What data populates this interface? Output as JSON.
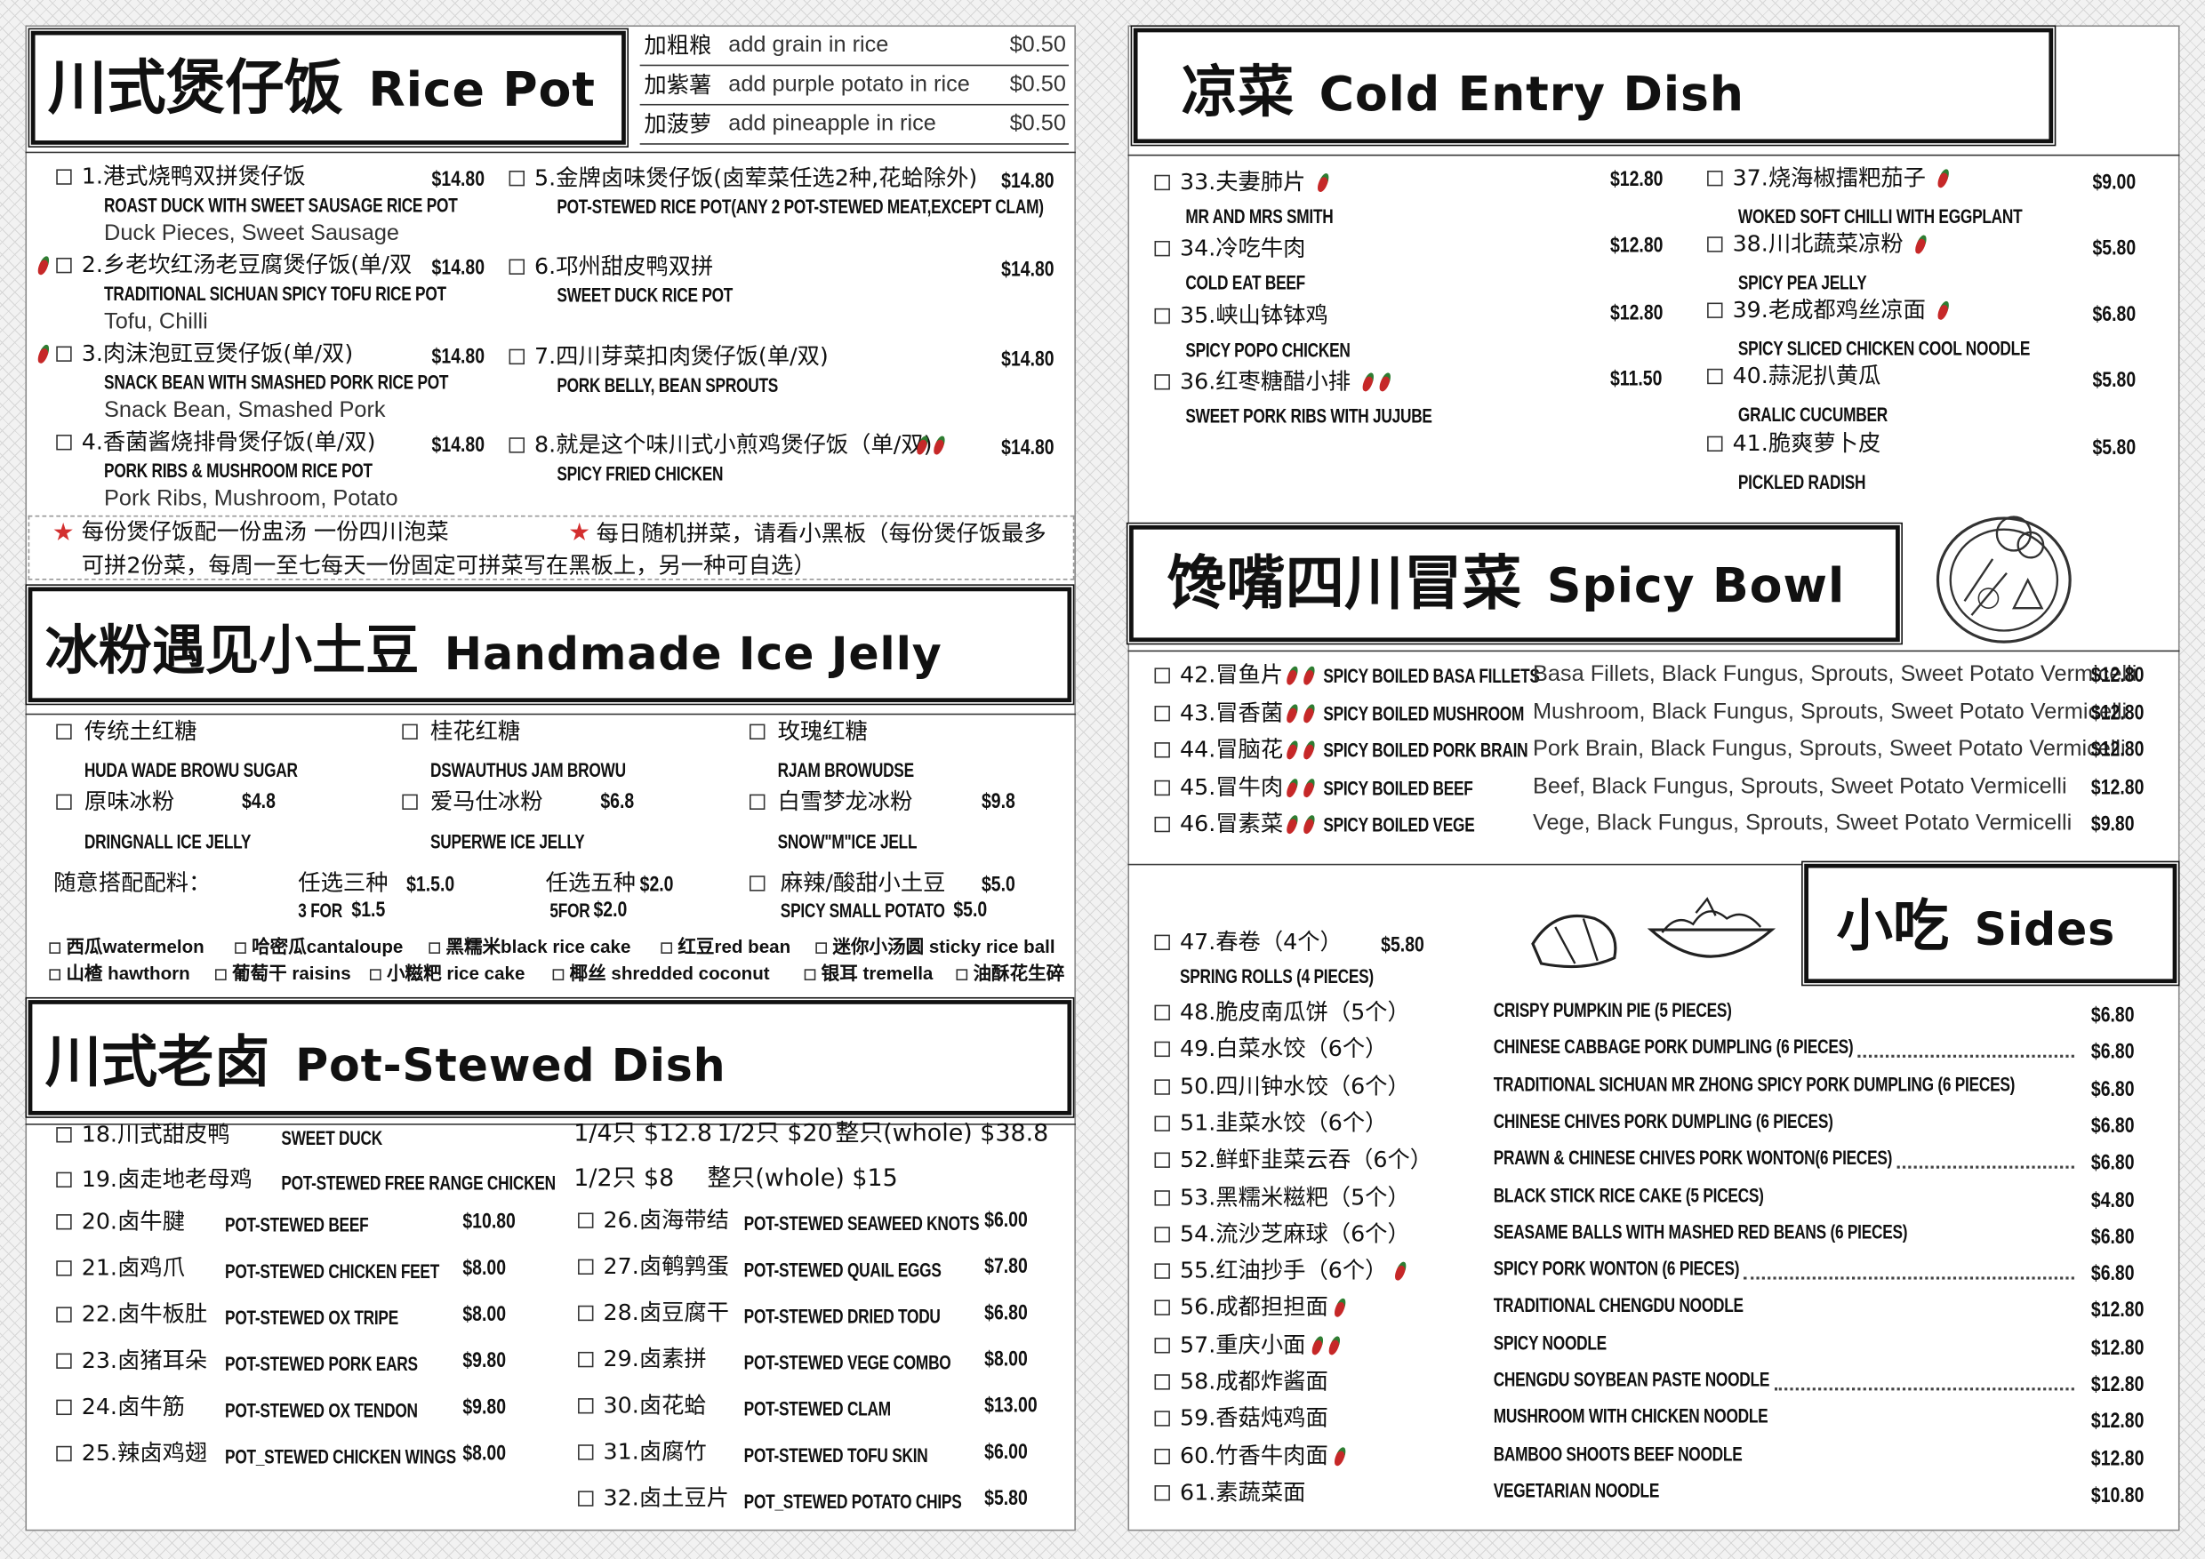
{
  "rice_pot": {
    "title_cn": "川式煲仔饭",
    "title_en": "Rice Pot",
    "addons": [
      {
        "cn": "加粗粮",
        "en": "add grain in rice",
        "price": "$0.50"
      },
      {
        "cn": "加紫薯",
        "en": "add purple potato in rice",
        "price": "$0.50"
      },
      {
        "cn": "加菠萝",
        "en": "add pineapple in rice",
        "price": "$0.50"
      }
    ],
    "items": [
      {
        "name": "1.港式烧鸭双拼煲仔饭",
        "price": "$14.80",
        "en": "ROAST DUCK WITH SWEET SAUSAGE RICE POT",
        "desc": "Duck Pieces, Sweet Sausage"
      },
      {
        "name": "2.乡老坎红汤老豆腐煲仔饭(单/双",
        "price": "$14.80",
        "en": "TRADITIONAL SICHUAN SPICY TOFU RICE POT",
        "desc": "Tofu, Chilli",
        "spicy": 1
      },
      {
        "name": "3.肉沫泡豇豆煲仔饭(单/双)",
        "price": "$14.80",
        "en": "SNACK BEAN WITH SMASHED PORK RICE POT",
        "desc": "Snack Bean, Smashed Pork",
        "spicy": 1
      },
      {
        "name": "4.香菌酱烧排骨煲仔饭(单/双)",
        "price": "$14.80",
        "en": "PORK RIBS & MUSHROOM RICE POT",
        "desc": "Pork Ribs, Mushroom, Potato"
      },
      {
        "name": "5.金牌卤味煲仔饭(卤荤菜任选2种,花蛤除外)",
        "price": "$14.80",
        "en": "POT-STEWED RICE POT(ANY  2 POT-STEWED MEAT,EXCEPT CLAM)"
      },
      {
        "name": "6.邛州甜皮鸭双拼",
        "price": "$14.80",
        "en": "SWEET DUCK RICE POT"
      },
      {
        "name": "7.四川芽菜扣肉煲仔饭(单/双)",
        "price": "$14.80",
        "en": "PORK BELLY, BEAN SPROUTS"
      },
      {
        "name": "8.就是这个味川式小煎鸡煲仔饭（单/双)",
        "price": "$14.80",
        "en": "SPICY FRIED CHICKEN",
        "spicy": 2
      }
    ],
    "notes": [
      "每份煲仔饭配一份盅汤 一份四川泡菜",
      "每日随机拼菜，请看小黑板（每份煲仔饭最多可拼2份菜，每周一至七每天一份固定可拼菜写在黑板上，另一种可自选）"
    ]
  },
  "ice_jelly": {
    "title_cn": "冰粉遇见小土豆",
    "title_en": "Handmade Ice Jelly",
    "items": [
      {
        "name": "传统土红糖",
        "en": "HUDA WADE BROWU SUGAR"
      },
      {
        "name": "桂花红糖",
        "en": "DSWAUTHUS JAM BROWU"
      },
      {
        "name": "玫瑰红糖",
        "en": "RJAM BROWUDSE"
      },
      {
        "name": "原味冰粉",
        "en": "DRINGNALL ICE JELLY",
        "price": "$4.8"
      },
      {
        "name": "爱马仕冰粉",
        "en": "SUPERWE ICE JELLY",
        "price": "$6.8"
      },
      {
        "name": "白雪梦龙冰粉",
        "en": "SNOW\"M\"ICE JELL",
        "price": "$9.8"
      }
    ],
    "extras_label": "随意搭配配料：",
    "extras": [
      {
        "cn": "任选三种",
        "price": "$1.5.0",
        "en": "3 FOR",
        "en_price": "$1.5"
      },
      {
        "cn": "任选五种",
        "price": "$2.0",
        "en": "5FOR",
        "en_price": "$2.0"
      },
      {
        "cn": "麻辣/酸甜小土豆",
        "price": "$5.0",
        "en": "SPICY SMALL POTATO",
        "en_price": "$5.0"
      }
    ],
    "toppings": [
      "西瓜watermelon",
      "哈密瓜cantaloupe",
      "黑糯米black rice cake",
      "红豆red bean",
      "迷你小汤圆 sticky rice ball",
      "山楂 hawthorn",
      "葡萄干 raisins",
      "小糍粑 rice cake",
      "椰丝 shredded coconut",
      "银耳 tremella",
      "油酥花生碎"
    ]
  },
  "pot_stewed": {
    "title_cn": "川式老卤",
    "title_en": "Pot-Stewed Dish",
    "whole_items": [
      {
        "name": "18.川式甜皮鸭",
        "en": "SWEET DUCK",
        "portions": [
          "1/4只 $12.8",
          "1/2只 $20",
          "整只(whole) $38.8"
        ]
      },
      {
        "name": "19.卤走地老母鸡",
        "en": "POT-STEWED FREE RANGE CHICKEN",
        "portions": [
          "1/2只 $8",
          "整只(whole) $15"
        ]
      }
    ],
    "items": [
      {
        "name": "20.卤牛腱",
        "en": "POT-STEWED BEEF",
        "price": "$10.80"
      },
      {
        "name": "21.卤鸡爪",
        "en": "POT-STEWED CHICKEN FEET",
        "price": "$8.00"
      },
      {
        "name": "22.卤牛板肚",
        "en": "POT-STEWED OX TRIPE",
        "price": "$8.00"
      },
      {
        "name": "23.卤猪耳朵",
        "en": "POT-STEWED PORK EARS",
        "price": "$9.80"
      },
      {
        "name": "24.卤牛筋",
        "en": "POT-STEWED OX TENDON",
        "price": "$9.80"
      },
      {
        "name": "25.辣卤鸡翅",
        "en": "POT_STEWED CHICKEN WINGS",
        "price": "$8.00"
      },
      {
        "name": "26.卤海带结",
        "en": "POT-STEWED SEAWEED KNOTS",
        "price": "$6.00"
      },
      {
        "name": "27.卤鹌鹑蛋",
        "en": "POT-STEWED QUAIL EGGS",
        "price": "$7.80"
      },
      {
        "name": "28.卤豆腐干",
        "en": "POT-STEWED DRIED TODU",
        "price": "$6.80"
      },
      {
        "name": "29.卤素拼",
        "en": "POT-STEWED VEGE COMBO",
        "price": "$8.00"
      },
      {
        "name": "30.卤花蛤",
        "en": "POT-STEWED CLAM",
        "price": "$13.00"
      },
      {
        "name": "31.卤腐竹",
        "en": "POT-STEWED TOFU SKIN",
        "price": "$6.00"
      },
      {
        "name": "32.卤土豆片",
        "en": "POT_STEWED POTATO CHIPS",
        "price": "$5.80"
      }
    ]
  },
  "cold_dish": {
    "title_cn": "凉菜",
    "title_en": "Cold Entry Dish",
    "items": [
      {
        "name": "33.夫妻肺片",
        "en": "MR AND MRS SMITH",
        "price": "$12.80",
        "spicy": 1
      },
      {
        "name": "34.冷吃牛肉",
        "en": "COLD EAT BEEF",
        "price": "$12.80"
      },
      {
        "name": "35.峡山钵钵鸡",
        "en": "SPICY POPO CHICKEN",
        "price": "$12.80"
      },
      {
        "name": "36.红枣糖醋小排",
        "en": "SWEET PORK RIBS WITH JUJUBE",
        "price": "$11.50",
        "spicy": 2
      },
      {
        "name": "37.烧海椒擂粑茄子",
        "en": "WOKED SOFT CHILLI WITH EGGPLANT",
        "price": "$9.00",
        "spicy": 1
      },
      {
        "name": "38.川北蔬菜凉粉",
        "en": "SPICY PEA JELLY",
        "price": "$5.80",
        "spicy": 1
      },
      {
        "name": "39.老成都鸡丝凉面",
        "en": "SPICY SLICED CHICKEN COOL NOODLE",
        "price": "$6.80",
        "spicy": 1
      },
      {
        "name": "40.蒜泥扒黄瓜",
        "en": "GRALIC CUCUMBER",
        "price": "$5.80"
      },
      {
        "name": "41.脆爽萝卜皮",
        "en": "PICKLED RADISH",
        "price": "$5.80"
      }
    ]
  },
  "spicy_bowl": {
    "title_cn": "馋嘴四川冒菜",
    "title_en": "Spicy Bowl",
    "items": [
      {
        "name": "42.冒鱼片",
        "en": "SPICY BOILED BASA FILLETS",
        "desc": "Basa Fillets, Black Fungus, Sprouts, Sweet Potato Vermicelli",
        "price": "$12.80",
        "spicy": 2
      },
      {
        "name": "43.冒香菌",
        "en": "SPICY BOILED MUSHROOM",
        "desc": "Mushroom, Black Fungus, Sprouts, Sweet Potato Vermicelli",
        "price": "$12.80",
        "spicy": 2
      },
      {
        "name": "44.冒脑花",
        "en": "SPICY BOILED PORK BRAIN",
        "desc": "Pork Brain, Black Fungus, Sprouts, Sweet Potato Vermicelli",
        "price": "$12.80",
        "spicy": 2
      },
      {
        "name": "45.冒牛肉",
        "en": "SPICY BOILED BEEF",
        "desc": "Beef, Black Fungus, Sprouts, Sweet Potato Vermicelli",
        "price": "$12.80",
        "spicy": 2
      },
      {
        "name": "46.冒素菜",
        "en": "SPICY BOILED VEGE",
        "desc": "Vege, Black Fungus, Sprouts, Sweet Potato Vermicelli",
        "price": "$9.80",
        "spicy": 2
      }
    ]
  },
  "sides": {
    "title_cn": "小吃",
    "title_en": "Sides",
    "items": [
      {
        "name": "47.春卷（4个）",
        "en": "SPRING ROLLS (4 PIECES)",
        "price": "$5.80"
      },
      {
        "name": "48.脆皮南瓜饼（5个）",
        "en": "CRISPY PUMPKIN PIE (5 PIECES)",
        "price": "$6.80"
      },
      {
        "name": "49.白菜水饺（6个）",
        "en": "CHINESE CABBAGE PORK DUMPLING (6 PIECES)",
        "price": "$6.80",
        "leader": true
      },
      {
        "name": "50.四川钟水饺（6个）",
        "en": "TRADITIONAL SICHUAN MR ZHONG SPICY PORK DUMPLING (6 PIECES)",
        "price": "$6.80"
      },
      {
        "name": "51.韭菜水饺（6个）",
        "en": "CHINESE CHIVES PORK DUMPLING (6 PIECES)",
        "price": "$6.80"
      },
      {
        "name": "52.鲜虾韭菜云吞（6个）",
        "en": "PRAWN & CHINESE CHIVES PORK WONTON(6 PIECES)",
        "price": "$6.80",
        "leader": true
      },
      {
        "name": "53.黑糯米糍粑（5个）",
        "en": "BLACK STICK RICE CAKE (5 PICECS)",
        "price": "$4.80"
      },
      {
        "name": "54.流沙芝麻球（6个）",
        "en": "SEASAME BALLS WITH MASHED RED BEANS (6 PIECES)",
        "price": "$6.80"
      },
      {
        "name": "55.红油抄手（6个）",
        "en": "SPICY PORK WONTON (6 PIECES)",
        "price": "$6.80",
        "spicy": 1,
        "leader": true
      },
      {
        "name": "56.成都担担面",
        "en": "TRADITIONAL CHENGDU NOODLE",
        "price": "$12.80",
        "spicy": 1
      },
      {
        "name": "57.重庆小面",
        "en": "SPICY NOODLE",
        "price": "$12.80",
        "spicy": 2
      },
      {
        "name": "58.成都炸酱面",
        "en": "CHENGDU SOYBEAN PASTE NOODLE",
        "price": "$12.80",
        "leader": true
      },
      {
        "name": "59.香菇炖鸡面",
        "en": "MUSHROOM WITH CHICKEN NOODLE",
        "price": "$12.80"
      },
      {
        "name": "60.竹香牛肉面",
        "en": "BAMBOO SHOOTS BEEF NOODLE",
        "price": "$12.80",
        "spicy": 1
      },
      {
        "name": "61.素蔬菜面",
        "en": "VEGETARIAN NOODLE",
        "price": "$10.80"
      }
    ]
  }
}
